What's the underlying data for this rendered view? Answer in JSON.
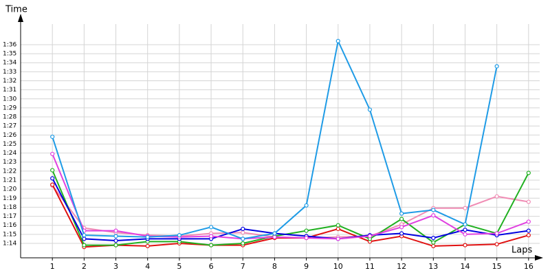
{
  "chart_data": {
    "type": "line",
    "x_label": "Laps",
    "y_label": "Time",
    "x": [
      1,
      2,
      3,
      4,
      5,
      6,
      7,
      8,
      9,
      10,
      11,
      12,
      13,
      14,
      15,
      16
    ],
    "xlim": [
      0,
      16.35
    ],
    "xticks": [
      1,
      2,
      3,
      4,
      5,
      6,
      7,
      8,
      9,
      10,
      11,
      12,
      13,
      14,
      15,
      16
    ],
    "ylim": [
      72.4,
      97.9
    ],
    "yticks": [
      {
        "value": 74,
        "label": "1:14"
      },
      {
        "value": 75,
        "label": "1:15"
      },
      {
        "value": 76,
        "label": "1:16"
      },
      {
        "value": 77,
        "label": "1:17"
      },
      {
        "value": 78,
        "label": "1:18"
      },
      {
        "value": 79,
        "label": "1:19"
      },
      {
        "value": 80,
        "label": "1:20"
      },
      {
        "value": 81,
        "label": "1:21"
      },
      {
        "value": 82,
        "label": "1:22"
      },
      {
        "value": 83,
        "label": "1:23"
      },
      {
        "value": 84,
        "label": "1:24"
      },
      {
        "value": 85,
        "label": "1:25"
      },
      {
        "value": 86,
        "label": "1:26"
      },
      {
        "value": 87,
        "label": "1:27"
      },
      {
        "value": 88,
        "label": "1:28"
      },
      {
        "value": 89,
        "label": "1:29"
      },
      {
        "value": 90,
        "label": "1:30"
      },
      {
        "value": 91,
        "label": "1:31"
      },
      {
        "value": 92,
        "label": "1:32"
      },
      {
        "value": 93,
        "label": "1:33"
      },
      {
        "value": 94,
        "label": "1:34"
      },
      {
        "value": 95,
        "label": "1:35"
      },
      {
        "value": 96,
        "label": "1:36"
      }
    ],
    "grid": true,
    "series": [
      {
        "color": "#f08cb4",
        "values": [
          80.4,
          75.7,
          75.2,
          74.9,
          74.8,
          75.1,
          75.2,
          74.7,
          74.6,
          74.7,
          74.8,
          76.1,
          77.9,
          77.9,
          79.2,
          78.6
        ]
      },
      {
        "color": "#e01010",
        "values": [
          80.5,
          73.6,
          73.8,
          73.7,
          74.0,
          73.8,
          73.8,
          74.6,
          74.6,
          75.6,
          74.2,
          74.8,
          73.7,
          73.8,
          73.9,
          74.9
        ]
      },
      {
        "color": "#20b020",
        "values": [
          82.1,
          73.8,
          73.8,
          74.2,
          74.2,
          73.8,
          74.0,
          74.8,
          75.4,
          76.0,
          74.5,
          76.7,
          74.1,
          76.1,
          75.1,
          81.8
        ]
      },
      {
        "color": "#0000e0",
        "values": [
          81.2,
          74.5,
          74.3,
          74.5,
          74.5,
          74.5,
          75.6,
          75.1,
          74.8,
          74.5,
          74.9,
          75.1,
          74.6,
          75.5,
          74.9,
          75.4
        ]
      },
      {
        "color": "#e040e0",
        "values": [
          83.9,
          75.4,
          75.4,
          74.8,
          74.7,
          74.8,
          74.5,
          74.7,
          74.6,
          74.5,
          74.8,
          75.8,
          77.1,
          75.0,
          75.1,
          76.4
        ]
      },
      {
        "color": "#1e9be6",
        "values": [
          85.8,
          74.9,
          74.8,
          74.7,
          74.9,
          75.8,
          74.5,
          75.1,
          78.2,
          96.4,
          88.8,
          77.3,
          77.7,
          76.1,
          93.6,
          null
        ]
      }
    ]
  }
}
